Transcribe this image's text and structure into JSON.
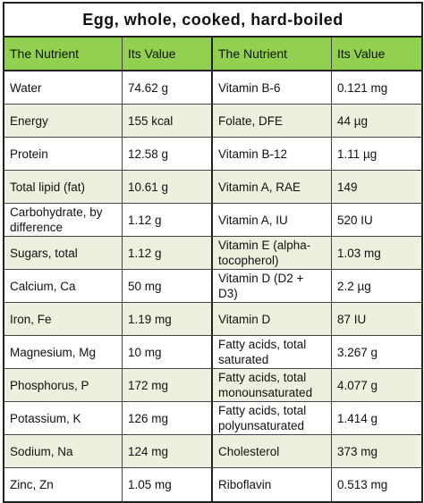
{
  "title": "Egg, whole, cooked, hard-boiled",
  "table": {
    "header": [
      "The Nutrient",
      "Its Value",
      "The Nutrient",
      "Its Value"
    ],
    "rows": [
      [
        "Water",
        "74.62 g",
        "Vitamin B-6",
        "0.121 mg"
      ],
      [
        "Energy",
        "155 kcal",
        "Folate, DFE",
        "44 µg"
      ],
      [
        "Protein",
        "12.58 g",
        "Vitamin B-12",
        "1.11 µg"
      ],
      [
        "Total lipid (fat)",
        "10.61 g",
        "Vitamin A, RAE",
        "149"
      ],
      [
        "Carbohydrate, by difference",
        "1.12 g",
        "Vitamin A, IU",
        "520 IU"
      ],
      [
        "Sugars, total",
        "1.12 g",
        "Vitamin E (alpha-tocopherol)",
        "1.03 mg"
      ],
      [
        "Calcium, Ca",
        "50 mg",
        "Vitamin D (D2 + D3)",
        "2.2 µg"
      ],
      [
        "Iron, Fe",
        "1.19 mg",
        "Vitamin D",
        "87 IU"
      ],
      [
        "Magnesium, Mg",
        "10 mg",
        "Fatty acids, total saturated",
        "3.267 g"
      ],
      [
        "Phosphorus, P",
        "172 mg",
        "Fatty acids, total monounsaturated",
        "4.077 g"
      ],
      [
        "Potassium, K",
        "126 mg",
        "Fatty acids, total polyunsaturated",
        "1.414 g"
      ],
      [
        "Sodium, Na",
        "124 mg",
        "Cholesterol",
        "373 mg"
      ],
      [
        "Zinc, Zn",
        "1.05 mg",
        "Riboflavin",
        "0.513 mg"
      ]
    ]
  }
}
